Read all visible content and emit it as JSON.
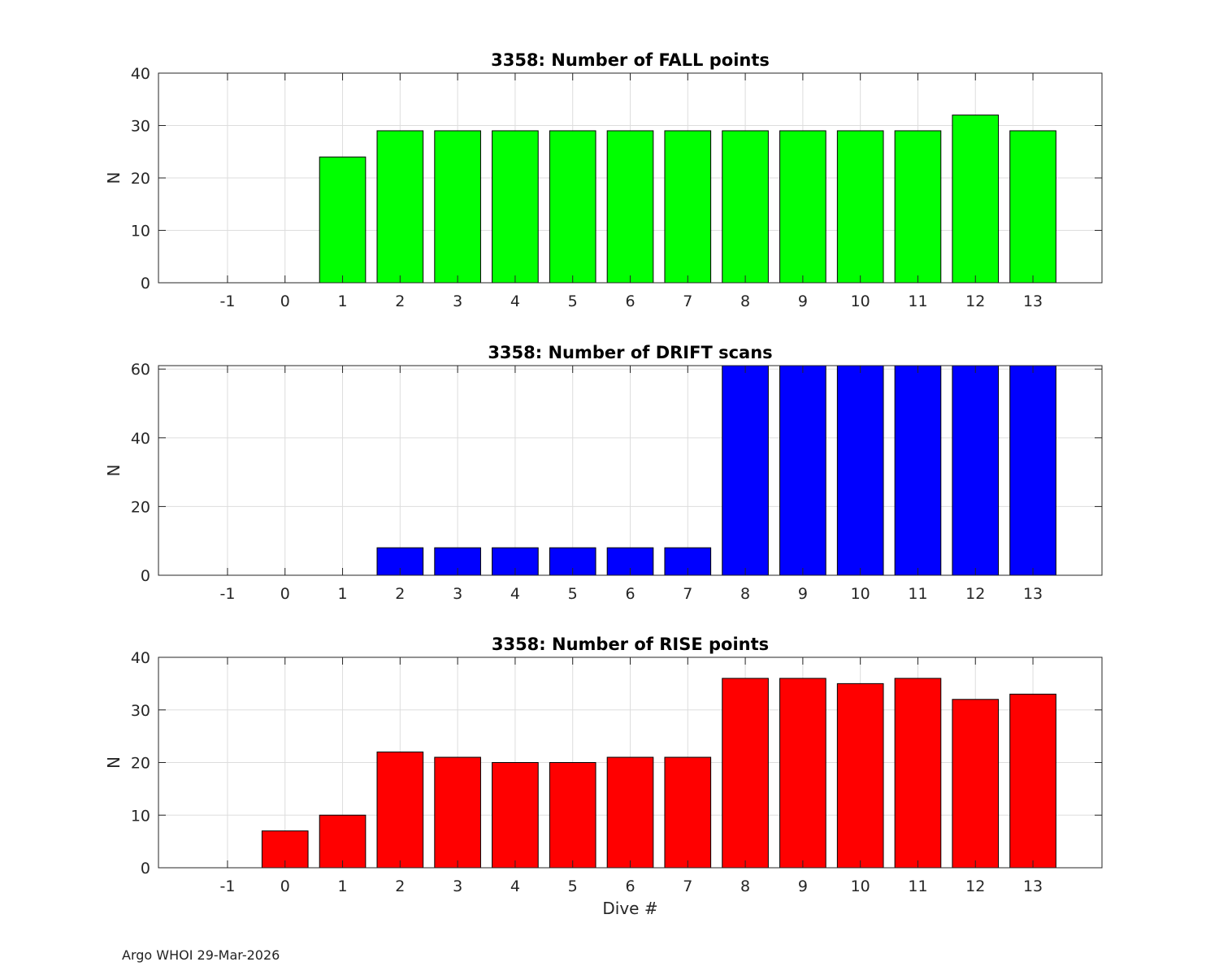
{
  "footer_text": "Argo WHOI 29-Mar-2026",
  "colors": {
    "fall": "#00ff00",
    "drift": "#0000ff",
    "rise": "#ff0000",
    "grid": "#dddddd",
    "axis": "#262626"
  },
  "chart_data": [
    {
      "type": "bar",
      "title": "3358: Number of FALL points",
      "xlabel": "",
      "ylabel": "N",
      "categories": [
        "-1",
        "0",
        "1",
        "2",
        "3",
        "4",
        "5",
        "6",
        "7",
        "8",
        "9",
        "10",
        "11",
        "12",
        "13"
      ],
      "values": [
        0,
        0,
        24,
        29,
        29,
        29,
        29,
        29,
        29,
        29,
        29,
        29,
        29,
        32,
        29
      ],
      "xlim": [
        -2.2,
        14.2
      ],
      "ylim": [
        0,
        40
      ],
      "yticks": [
        0,
        10,
        20,
        30,
        40
      ],
      "grid": true,
      "color": "#00ff00"
    },
    {
      "type": "bar",
      "title": "3358: Number of DRIFT scans",
      "xlabel": "",
      "ylabel": "N",
      "categories": [
        "-1",
        "0",
        "1",
        "2",
        "3",
        "4",
        "5",
        "6",
        "7",
        "8",
        "9",
        "10",
        "11",
        "12",
        "13"
      ],
      "values": [
        0,
        0,
        0,
        8,
        8,
        8,
        8,
        8,
        8,
        61,
        61,
        61,
        61,
        61,
        61
      ],
      "xlim": [
        -2.2,
        14.2
      ],
      "ylim": [
        0,
        61
      ],
      "yticks": [
        0,
        20,
        40,
        60
      ],
      "grid": true,
      "color": "#0000ff"
    },
    {
      "type": "bar",
      "title": "3358: Number of RISE points",
      "xlabel": "Dive #",
      "ylabel": "N",
      "categories": [
        "-1",
        "0",
        "1",
        "2",
        "3",
        "4",
        "5",
        "6",
        "7",
        "8",
        "9",
        "10",
        "11",
        "12",
        "13"
      ],
      "values": [
        0,
        7,
        10,
        22,
        21,
        20,
        20,
        21,
        21,
        36,
        36,
        35,
        36,
        32,
        33
      ],
      "xlim": [
        -2.2,
        14.2
      ],
      "ylim": [
        0,
        40
      ],
      "yticks": [
        0,
        10,
        20,
        30,
        40
      ],
      "grid": true,
      "color": "#ff0000"
    }
  ]
}
